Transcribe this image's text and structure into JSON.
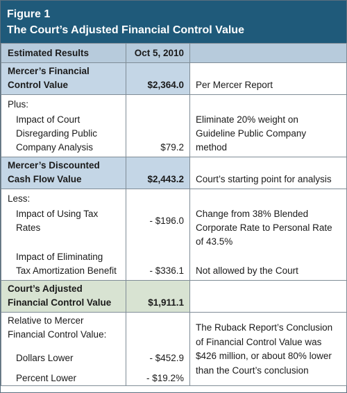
{
  "figure": {
    "label": "Figure 1",
    "title": "The Court’s Adjusted Financial Control Value"
  },
  "header_row": {
    "label": "Estimated Results",
    "date": "Oct 5, 2010",
    "note": ""
  },
  "rows": {
    "mercer_fcv": {
      "label_line1": "Mercer’s Financial",
      "label_line2": "Control Value",
      "value": "$2,364.0",
      "note": "Per Mercer Report"
    },
    "plus": {
      "label": "Plus:"
    },
    "disregard": {
      "label_line1": "Impact of Court",
      "label_line2": "Disregarding Public",
      "label_line3": "Company Analysis",
      "value": "$79.2",
      "note_line1": "Eliminate 20% weight on",
      "note_line2": "Guideline Public Company",
      "note_line3": "method"
    },
    "mercer_dcf": {
      "label_line1": "Mercer’s Discounted",
      "label_line2": "Cash Flow Value",
      "value": "$2,443.2",
      "note": "Court’s starting point for analysis"
    },
    "less": {
      "label": "Less:"
    },
    "tax_rates": {
      "label_line1": "Impact of Using Tax",
      "label_line2": "Rates",
      "value": "- $196.0",
      "note_line1": "Change from 38% Blended",
      "note_line2": "Corporate Rate to Personal Rate",
      "note_line3": "of 43.5%"
    },
    "tax_amort": {
      "label_line1": "Impact of Eliminating",
      "label_line2": "Tax Amortization Benefit",
      "value": "- $336.1",
      "note": "Not allowed by the Court"
    },
    "court_fcv": {
      "label_line1": "Court’s Adjusted",
      "label_line2": "Financial Control Value",
      "value": "$1,911.1",
      "note": ""
    },
    "relative": {
      "label_line1": "Relative to Mercer",
      "label_line2": "Financial Control Value:"
    },
    "dollars_lower": {
      "label": "Dollars Lower",
      "value": "- $452.9"
    },
    "percent_lower": {
      "label": "Percent Lower",
      "value": "- $19.2%"
    },
    "ruback_note": {
      "line1": "The Ruback Report’s Conclusion",
      "line2": "of Financial Control Value was",
      "line3": "$426 million, or about 80% lower",
      "line4": "than the Court’s conclusion"
    }
  },
  "colors": {
    "header_bg": "#1f5a7a",
    "header_row_bg": "#b7cbdc",
    "blue_cell": "#c4d6e6",
    "green_cell": "#d8e3d2",
    "border": "#7f8c96"
  }
}
